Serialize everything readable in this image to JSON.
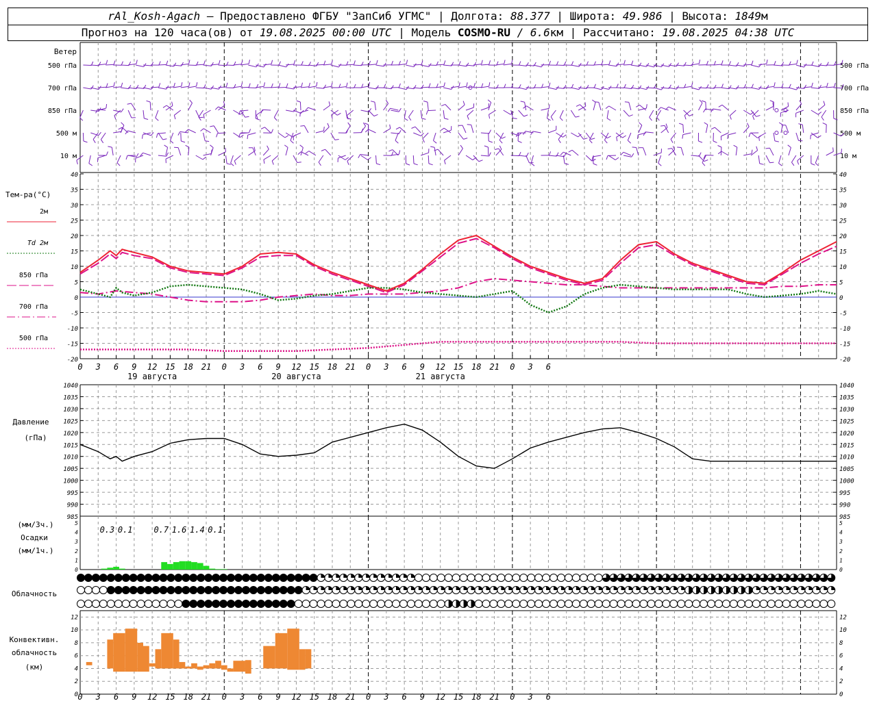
{
  "header": {
    "station": "rAl_Kosh-Agach",
    "provided": "– Предоставлено ФГБУ \"ЗапСиб УГМС\"",
    "lon_label": "| Долгота:",
    "lon_value": "88.377",
    "lat_label": "| Широта:",
    "lat_value": "49.986",
    "alt_label": "| Высота:",
    "alt_value": "1849",
    "alt_unit": "м",
    "forecast_label": "Прогноз на 120 часа(ов) от",
    "forecast_start": "19.08.2025 00:00 UTC",
    "model_label": "| Модель",
    "model_name": "COSMO-RU",
    "model_res": "/ 6.6",
    "model_res_unit": "км",
    "calc_label": "| Рассчитано:",
    "calc_time": "19.08.2025 04:38 UTC"
  },
  "colors": {
    "t2m": "#ee2233",
    "td2m": "#117711",
    "t850": "#dd1188",
    "wind": "#7722bb",
    "precip": "#22dd22",
    "conv": "#ee8833",
    "grid": "#999999",
    "zeroline": "#3333cc"
  },
  "chart_data": [
    {
      "type": "wind_barbs",
      "panel_label": "Ветер",
      "levels": [
        "500 гПа",
        "700 гПа",
        "850 гПа",
        "500  м",
        "10   м"
      ],
      "x_hours_range": [
        0,
        126
      ],
      "note_calm_glyph": "○"
    },
    {
      "type": "line",
      "title": "Тем-ра(°С)",
      "ylim": [
        -20,
        40
      ],
      "yticks": [
        -20,
        -15,
        -10,
        -5,
        0,
        5,
        10,
        15,
        20,
        25,
        30,
        35,
        40
      ],
      "x_unit": "hours since 19.08.2025 00 UTC",
      "series": [
        {
          "name": "2м",
          "style": "solid",
          "color": "#ee2233",
          "x": [
            0,
            3,
            5,
            6,
            7,
            9,
            12,
            15,
            18,
            21,
            24,
            27,
            30,
            33,
            36,
            39,
            42,
            45,
            48,
            51,
            54,
            57,
            60,
            63,
            66,
            69,
            72,
            75,
            78,
            81,
            84,
            87,
            90,
            93,
            96,
            99,
            102,
            105,
            108,
            111,
            114,
            117,
            120,
            123,
            126
          ],
          "y": [
            8,
            12,
            15,
            13.5,
            15.5,
            14.5,
            13,
            10,
            8.5,
            8,
            7.5,
            10,
            14,
            14.5,
            14,
            10.5,
            8,
            6,
            4,
            2,
            4.5,
            9,
            14,
            18.5,
            20,
            16.5,
            13,
            10,
            8,
            6,
            4.5,
            6,
            12,
            17,
            18,
            14,
            11,
            9,
            7,
            5,
            4.5,
            8,
            12,
            15,
            18
          ]
        },
        {
          "name": "Td  2м",
          "style": "dotted",
          "color": "#117711",
          "x": [
            0,
            3,
            5,
            6,
            7,
            9,
            12,
            15,
            18,
            21,
            24,
            27,
            30,
            33,
            36,
            39,
            42,
            45,
            48,
            51,
            54,
            57,
            60,
            63,
            66,
            69,
            72,
            75,
            78,
            81,
            84,
            87,
            90,
            93,
            96,
            99,
            102,
            105,
            108,
            111,
            114,
            117,
            120,
            123,
            126
          ],
          "y": [
            2.5,
            1,
            0,
            3,
            1.5,
            0.5,
            1.5,
            3.5,
            4,
            3.5,
            3,
            2.5,
            1,
            -1,
            -0.5,
            0.5,
            1,
            2,
            3,
            3,
            2.5,
            1.5,
            1,
            0.5,
            0,
            1,
            2,
            -2.5,
            -5,
            -3,
            1,
            3,
            4,
            3.5,
            3,
            2.5,
            2.5,
            2.5,
            2.5,
            1,
            0,
            0.5,
            1,
            2,
            1
          ]
        },
        {
          "name": "850 гПа",
          "style": "longdash",
          "color": "#dd1188",
          "x": [
            0,
            3,
            5,
            6,
            7,
            9,
            12,
            15,
            18,
            21,
            24,
            27,
            30,
            33,
            36,
            39,
            42,
            45,
            48,
            51,
            54,
            57,
            60,
            63,
            66,
            69,
            72,
            75,
            78,
            81,
            84,
            87,
            90,
            93,
            96,
            99,
            102,
            105,
            108,
            111,
            114,
            117,
            120,
            123,
            126
          ],
          "y": [
            7.5,
            11,
            14,
            12.5,
            14.5,
            13.5,
            12.5,
            9.5,
            8,
            7.5,
            7,
            9.5,
            13,
            13.5,
            13.5,
            10,
            7.5,
            5.5,
            3.5,
            1.5,
            4,
            8.5,
            13,
            17.5,
            19,
            16,
            12.5,
            9.5,
            7.5,
            5.5,
            4,
            5.5,
            11,
            16,
            17,
            13.5,
            10.5,
            8.5,
            6.5,
            4.5,
            4,
            7.5,
            11,
            14,
            16.5
          ]
        },
        {
          "name": "700 гПа",
          "style": "dashdot",
          "color": "#dd1188",
          "x": [
            0,
            3,
            6,
            9,
            12,
            15,
            18,
            21,
            24,
            27,
            30,
            33,
            36,
            39,
            42,
            45,
            48,
            51,
            54,
            57,
            60,
            63,
            66,
            69,
            72,
            75,
            78,
            81,
            84,
            87,
            90,
            93,
            96,
            99,
            102,
            105,
            108,
            111,
            114,
            117,
            120,
            123,
            126
          ],
          "y": [
            1.5,
            1,
            2,
            1.5,
            1,
            0,
            -1,
            -1.5,
            -1.5,
            -1.5,
            -1,
            0,
            0.5,
            1,
            0.5,
            0.5,
            1,
            1,
            1,
            1.5,
            2,
            3,
            5,
            6,
            5.5,
            5,
            4.5,
            4,
            4,
            3.5,
            3,
            3,
            3,
            3,
            3,
            3,
            3,
            3,
            3,
            3.5,
            3.5,
            4,
            4
          ]
        },
        {
          "name": "500 гПа",
          "style": "dotted",
          "color": "#dd1188",
          "x": [
            0,
            6,
            12,
            18,
            24,
            30,
            36,
            42,
            48,
            54,
            60,
            66,
            72,
            78,
            84,
            90,
            96,
            102,
            108,
            114,
            120,
            126
          ],
          "y": [
            -17,
            -17,
            -17,
            -17,
            -17.5,
            -17.5,
            -17.5,
            -17,
            -16.5,
            -15.5,
            -14.5,
            -14.5,
            -14.5,
            -14.5,
            -14.5,
            -14.5,
            -15,
            -15,
            -15,
            -15,
            -15,
            -15
          ]
        }
      ],
      "x_ticks": [
        "0",
        "3",
        "6",
        "9",
        "12",
        "15",
        "18",
        "21",
        "0",
        "3",
        "6",
        "9",
        "12",
        "15",
        "18",
        "21",
        "0",
        "3",
        "6",
        "9",
        "12",
        "15",
        "18",
        "21",
        "0",
        "3",
        "6"
      ],
      "day_labels": [
        "19 августа",
        "20 августа",
        "21 августа"
      ]
    },
    {
      "type": "line",
      "title": "Давление",
      "ylabel": "(гПа)",
      "ylim": [
        985,
        1040
      ],
      "yticks": [
        985,
        990,
        995,
        1000,
        1005,
        1010,
        1015,
        1020,
        1025,
        1030,
        1035,
        1040
      ],
      "series": [
        {
          "name": "pressure",
          "color": "#000000",
          "x": [
            0,
            3,
            5,
            6,
            7,
            9,
            12,
            15,
            18,
            21,
            24,
            27,
            30,
            33,
            36,
            39,
            42,
            45,
            48,
            51,
            54,
            57,
            60,
            63,
            66,
            69,
            72,
            75,
            78,
            81,
            84,
            87,
            90,
            93,
            96,
            99,
            102,
            105,
            108,
            111,
            114,
            117,
            120,
            123,
            126
          ],
          "y": [
            1015,
            1012,
            1009,
            1010,
            1008,
            1010,
            1012,
            1015.5,
            1017,
            1017.5,
            1017.5,
            1015,
            1011,
            1010,
            1010.5,
            1011.5,
            1016,
            1018,
            1020,
            1022,
            1023.5,
            1021,
            1016,
            1010,
            1006,
            1005,
            1009,
            1013.5,
            1016,
            1018,
            1020,
            1021.5,
            1022,
            1020,
            1017.5,
            1014,
            1009,
            1008,
            1008,
            1008,
            1008,
            1008,
            1008,
            1008,
            1008
          ]
        }
      ]
    },
    {
      "type": "bar",
      "title": "Осадки",
      "ylabel_top": "(мм/3ч.)",
      "ylabel_bottom": "(мм/1ч.)",
      "ylim": [
        0,
        5
      ],
      "yticks": [
        0,
        1,
        2,
        3,
        4,
        5
      ],
      "three_hour_totals": [
        {
          "x": 4.5,
          "label": "0.3"
        },
        {
          "x": 7.5,
          "label": "0.1"
        },
        {
          "x": 13.5,
          "label": "0.7"
        },
        {
          "x": 16.5,
          "label": "1.6"
        },
        {
          "x": 19.5,
          "label": "1.4"
        },
        {
          "x": 22.5,
          "label": "0.1"
        }
      ],
      "hourly": {
        "x": [
          4,
          5,
          6,
          7,
          14,
          15,
          16,
          17,
          18,
          19,
          20,
          21,
          22,
          23,
          24
        ],
        "y": [
          0.1,
          0.2,
          0.3,
          0.1,
          0.8,
          0.6,
          0.8,
          0.9,
          0.9,
          0.8,
          0.7,
          0.4,
          0.1,
          0.05,
          0.05
        ]
      }
    },
    {
      "type": "table",
      "title": "Облачность",
      "rows": 3,
      "note": "cloud cover per hour (0..4 octa-quarters) for high / middle / low levels"
    },
    {
      "type": "bar",
      "title": "Конвективн. облачность",
      "ylabel": "(км)",
      "ylim": [
        0,
        13
      ],
      "yticks": [
        0,
        2,
        4,
        6,
        8,
        10,
        12
      ],
      "bars": [
        {
          "x0": 1,
          "x1": 2,
          "base": 4.5,
          "top": 5
        },
        {
          "x0": 4.5,
          "x1": 5.5,
          "base": 4,
          "top": 8.5
        },
        {
          "x0": 5.5,
          "x1": 7.5,
          "base": 3.5,
          "top": 9.5
        },
        {
          "x0": 7.5,
          "x1": 9.5,
          "base": 3.5,
          "top": 10.2
        },
        {
          "x0": 9.5,
          "x1": 10.5,
          "base": 3.5,
          "top": 8
        },
        {
          "x0": 10.5,
          "x1": 11.5,
          "base": 3.5,
          "top": 7.5
        },
        {
          "x0": 11.5,
          "x1": 12.5,
          "base": 4.3,
          "top": 4.8
        },
        {
          "x0": 12.5,
          "x1": 13.5,
          "base": 4,
          "top": 7
        },
        {
          "x0": 13.5,
          "x1": 15.5,
          "base": 4,
          "top": 9.5
        },
        {
          "x0": 15.5,
          "x1": 16.5,
          "base": 4,
          "top": 8.5
        },
        {
          "x0": 16.5,
          "x1": 17.5,
          "base": 4,
          "top": 5
        },
        {
          "x0": 17.5,
          "x1": 18.5,
          "base": 4,
          "top": 4.3
        },
        {
          "x0": 18.5,
          "x1": 19.5,
          "base": 4,
          "top": 4.8
        },
        {
          "x0": 19.5,
          "x1": 20.5,
          "base": 3.8,
          "top": 4.3
        },
        {
          "x0": 20.5,
          "x1": 21.5,
          "base": 4,
          "top": 4.5
        },
        {
          "x0": 21.5,
          "x1": 22.5,
          "base": 4,
          "top": 4.8
        },
        {
          "x0": 22.5,
          "x1": 23.5,
          "base": 4,
          "top": 5.2
        },
        {
          "x0": 23.5,
          "x1": 24.5,
          "base": 3.8,
          "top": 4.5
        },
        {
          "x0": 24.5,
          "x1": 25.5,
          "base": 3.5,
          "top": 4
        },
        {
          "x0": 25.5,
          "x1": 27.5,
          "base": 3.5,
          "top": 5.2
        },
        {
          "x0": 27.5,
          "x1": 28.5,
          "base": 3.2,
          "top": 5.3
        },
        {
          "x0": 30.5,
          "x1": 32.5,
          "base": 4,
          "top": 7.5
        },
        {
          "x0": 32.5,
          "x1": 34.5,
          "base": 4,
          "top": 9.5
        },
        {
          "x0": 34.5,
          "x1": 36.5,
          "base": 3.8,
          "top": 10.2
        },
        {
          "x0": 36.5,
          "x1": 37.5,
          "base": 3.8,
          "top": 7
        },
        {
          "x0": 37.5,
          "x1": 38.5,
          "base": 4,
          "top": 7
        }
      ]
    }
  ]
}
